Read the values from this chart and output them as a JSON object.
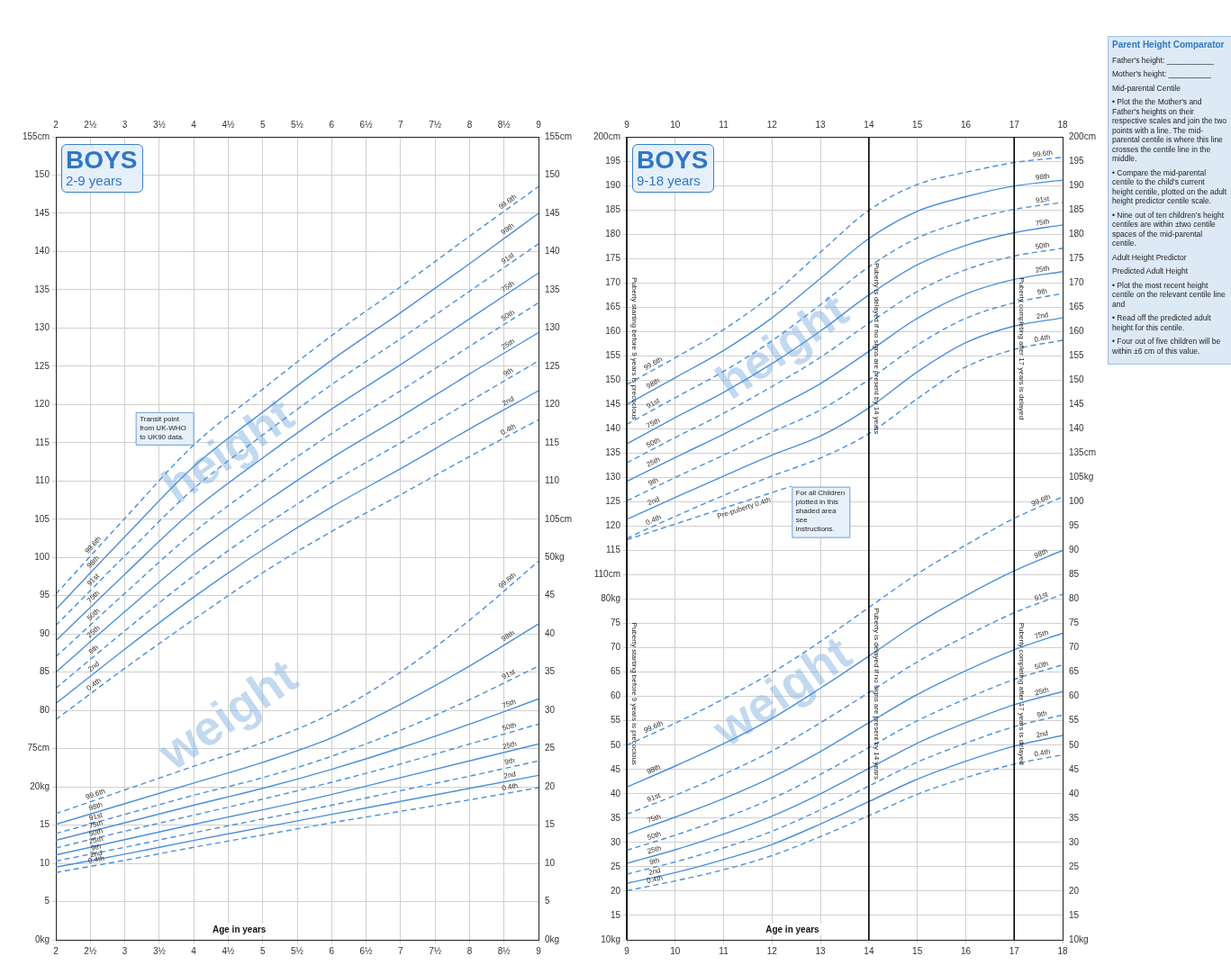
{
  "chart_data": [
    {
      "type": "line",
      "title": "BOYS",
      "subtitle": "2-9 years",
      "xlabel": "Age in years",
      "grid": true,
      "x": [
        2,
        3,
        4,
        5,
        6,
        7,
        8,
        9
      ],
      "xlim": [
        2,
        9
      ],
      "xticks": [
        2,
        {
          "value": 2.5,
          "label": "2½"
        },
        3,
        {
          "value": 3.5,
          "label": "3½"
        },
        4,
        {
          "value": 4.5,
          "label": "4½"
        },
        5,
        {
          "value": 5.5,
          "label": "5½"
        },
        6,
        {
          "value": 6.5,
          "label": "6½"
        },
        7,
        {
          "value": 7.5,
          "label": "7½"
        },
        8,
        {
          "value": 8.5,
          "label": "8½"
        },
        9
      ],
      "x2lim": [
        2,
        9
      ],
      "x2ticks": [
        2,
        {
          "value": 2.5,
          "label": "2½"
        },
        3,
        {
          "value": 3.5,
          "label": "3½"
        },
        4,
        {
          "value": 4.5,
          "label": "4½"
        },
        5,
        {
          "value": 5.5,
          "label": "5½"
        },
        6,
        {
          "value": 6.5,
          "label": "6½"
        },
        7,
        {
          "value": 7.5,
          "label": "7½"
        },
        8,
        {
          "value": 8.5,
          "label": "8½"
        },
        9
      ],
      "ylim": [
        50,
        155
      ],
      "yticks": [
        {
          "value": 75,
          "label": "75cm"
        },
        80,
        85,
        90,
        95,
        100,
        105,
        110,
        115,
        120,
        125,
        130,
        135,
        140,
        145,
        150,
        {
          "value": 155,
          "label": "155cm"
        }
      ],
      "y2lim": [
        50,
        155
      ],
      "y2ticks": [
        {
          "value": 105,
          "label": "105cm"
        },
        110,
        115,
        120,
        125,
        130,
        135,
        140,
        145,
        150,
        {
          "value": 155,
          "label": "155cm"
        }
      ],
      "series": [
        {
          "name": "99.6th",
          "color": "#4a90d9",
          "line_style": "dashed",
          "values": [
            95.2,
            105.1,
            114.7,
            122,
            129,
            135.4,
            142,
            148.5
          ]
        },
        {
          "name": "98th",
          "color": "#4a90d9",
          "line_style": "solid",
          "values": [
            93.2,
            102.7,
            111.9,
            119,
            125.8,
            132,
            138.4,
            145
          ]
        },
        {
          "name": "91st",
          "color": "#4a90d9",
          "line_style": "dashed",
          "values": [
            91.1,
            100.2,
            109,
            116,
            122.6,
            128.6,
            134.8,
            141
          ]
        },
        {
          "name": "75th",
          "color": "#4a90d9",
          "line_style": "solid",
          "values": [
            89.1,
            97.8,
            106.2,
            113,
            119.4,
            125.2,
            131.2,
            137.2
          ]
        },
        {
          "name": "50th",
          "color": "#4a90d9",
          "line_style": "dashed",
          "values": [
            87,
            95.3,
            103.3,
            110,
            116.2,
            121.8,
            127.6,
            133.3
          ]
        },
        {
          "name": "25th",
          "color": "#4a90d9",
          "line_style": "solid",
          "values": [
            85,
            92.9,
            100.5,
            107,
            113,
            118.4,
            124,
            129.4
          ]
        },
        {
          "name": "9th",
          "color": "#4a90d9",
          "line_style": "dashed",
          "values": [
            82.9,
            90.4,
            97.6,
            104,
            109.8,
            115,
            120.4,
            125.7
          ]
        },
        {
          "name": "2nd",
          "color": "#4a90d9",
          "line_style": "solid",
          "values": [
            80.9,
            88,
            94.8,
            101,
            106.6,
            111.6,
            116.8,
            121.8
          ]
        },
        {
          "name": "0.4th",
          "color": "#4a90d9",
          "line_style": "dashed",
          "values": [
            78.8,
            85.5,
            91.9,
            98,
            103.4,
            108.2,
            113.2,
            118
          ]
        }
      ],
      "annotations": [
        "height",
        {
          "text": "Transit point from UK-WHO to UK90 data.",
          "x": 4,
          "y": 114.7
        }
      ]
    },
    {
      "type": "line",
      "grid": "y",
      "tick_labels": "y",
      "x": [
        2,
        3,
        4,
        5,
        6,
        7,
        8,
        9
      ],
      "xlim": [
        2,
        9
      ],
      "ylim": [
        0,
        105
      ],
      "yticks": [
        {
          "value": 0,
          "label": "0kg"
        },
        5,
        10,
        15,
        {
          "value": 20,
          "label": "20kg"
        }
      ],
      "y2lim": [
        0,
        105
      ],
      "y2ticks": [
        {
          "value": 0,
          "label": "0kg"
        },
        5,
        10,
        15,
        20,
        25,
        30,
        35,
        40,
        45,
        {
          "value": 50,
          "label": "50kg"
        }
      ],
      "series": [
        {
          "name": "99.6th",
          "color": "#4a90d9",
          "line_style": "dashed",
          "values": [
            16.5,
            19.6,
            22.7,
            25.8,
            29.6,
            35.0,
            41.8,
            49.5
          ]
        },
        {
          "name": "98th",
          "color": "#4a90d9",
          "line_style": "solid",
          "values": [
            15.1,
            17.8,
            20.5,
            23.2,
            26.4,
            30.8,
            35.8,
            41.3
          ]
        },
        {
          "name": "91st",
          "color": "#4a90d9",
          "line_style": "dashed",
          "values": [
            13.9,
            16.4,
            18.9,
            21.2,
            24.0,
            27.4,
            31.4,
            35.8
          ]
        },
        {
          "name": "75th",
          "color": "#4a90d9",
          "line_style": "solid",
          "values": [
            13.0,
            15.3,
            17.6,
            19.8,
            22.3,
            25.1,
            28.2,
            31.5
          ]
        },
        {
          "name": "50th",
          "color": "#4a90d9",
          "line_style": "dashed",
          "values": [
            12.0,
            14.2,
            16.3,
            18.4,
            20.6,
            23.0,
            25.6,
            28.2
          ]
        },
        {
          "name": "25th",
          "color": "#4a90d9",
          "line_style": "solid",
          "values": [
            11.1,
            13.1,
            15.1,
            17.0,
            19.0,
            21.2,
            23.4,
            25.6
          ]
        },
        {
          "name": "9th",
          "color": "#4a90d9",
          "line_style": "dashed",
          "values": [
            10.3,
            12.1,
            14.0,
            15.8,
            17.6,
            19.5,
            21.4,
            23.4
          ]
        },
        {
          "name": "2nd",
          "color": "#4a90d9",
          "line_style": "solid",
          "values": [
            9.5,
            11.2,
            13.0,
            14.7,
            16.4,
            18.1,
            19.8,
            21.5
          ]
        },
        {
          "name": "0.4th",
          "color": "#4a90d9",
          "line_style": "dashed",
          "values": [
            8.8,
            10.4,
            12.1,
            13.7,
            15.3,
            16.8,
            18.3,
            19.9
          ]
        }
      ],
      "annotations": [
        "weight"
      ]
    },
    {
      "type": "line",
      "title": "BOYS",
      "subtitle": "9-18 years",
      "xlabel": "Age in years",
      "grid": true,
      "x": [
        9,
        10,
        11,
        12,
        13,
        14,
        15,
        16,
        17,
        18
      ],
      "xlim": [
        9,
        18
      ],
      "xticks": [
        9,
        10,
        11,
        12,
        13,
        14,
        15,
        16,
        17,
        18
      ],
      "x2lim": [
        9,
        18
      ],
      "x2ticks": [
        9,
        10,
        11,
        12,
        13,
        14,
        15,
        16,
        17,
        18
      ],
      "ylim": [
        35,
        200
      ],
      "yticks": [
        {
          "value": 110,
          "label": "110cm"
        },
        115,
        120,
        125,
        130,
        135,
        140,
        145,
        150,
        155,
        160,
        165,
        170,
        175,
        180,
        185,
        190,
        195,
        {
          "value": 200,
          "label": "200cm"
        }
      ],
      "y2lim": [
        35,
        200
      ],
      "y2ticks": [
        {
          "value": 135,
          "label": "135cm"
        },
        140,
        145,
        150,
        155,
        160,
        165,
        170,
        175,
        180,
        185,
        190,
        195,
        {
          "value": 200,
          "label": "200cm"
        }
      ],
      "ref_lines": [
        {
          "axis": "x",
          "value": 9,
          "color": "#000000",
          "label": "Puberty starting before 9 years is precocious"
        },
        {
          "axis": "x",
          "value": 14,
          "color": "#000000",
          "label": "Puberty is delayed if no signs are present by 14 years"
        },
        {
          "axis": "x",
          "value": 17,
          "color": "#000000",
          "label": "Puberty completing after 17 years is delayed"
        }
      ],
      "series": [
        {
          "name": "99.6th",
          "color": "#4a90d9",
          "line_style": "dashed",
          "values": [
            149.1,
            154.6,
            160.4,
            167.5,
            176.3,
            184.9,
            190.2,
            192.7,
            194.7,
            195.8
          ]
        },
        {
          "name": "98th",
          "color": "#4a90d9",
          "line_style": "solid",
          "values": [
            145.0,
            150.5,
            156.1,
            162.8,
            170.9,
            179.1,
            184.7,
            187.7,
            189.9,
            191.1
          ]
        },
        {
          "name": "91st",
          "color": "#4a90d9",
          "line_style": "dashed",
          "values": [
            140.9,
            146.4,
            151.8,
            158.1,
            165.5,
            173.3,
            179.2,
            182.7,
            185.1,
            186.5
          ]
        },
        {
          "name": "75th",
          "color": "#4a90d9",
          "line_style": "solid",
          "values": [
            136.9,
            142.3,
            147.5,
            153.4,
            160.1,
            167.5,
            173.7,
            177.7,
            180.3,
            181.9
          ]
        },
        {
          "name": "50th",
          "color": "#4a90d9",
          "line_style": "dashed",
          "values": [
            133.0,
            138.2,
            143.2,
            148.7,
            154.7,
            161.7,
            168.2,
            172.7,
            175.5,
            177.1
          ]
        },
        {
          "name": "25th",
          "color": "#4a90d9",
          "line_style": "solid",
          "values": [
            129.2,
            134.1,
            138.9,
            144.0,
            149.3,
            155.9,
            162.7,
            167.7,
            170.7,
            172.3
          ]
        },
        {
          "name": "9th",
          "color": "#4a90d9",
          "line_style": "dashed",
          "values": [
            125.2,
            130.0,
            134.6,
            139.3,
            143.9,
            150.1,
            157.2,
            162.7,
            165.9,
            167.8
          ]
        },
        {
          "name": "2nd",
          "color": "#4a90d9",
          "line_style": "solid",
          "values": [
            121.4,
            125.9,
            130.3,
            134.6,
            138.5,
            144.3,
            151.7,
            157.7,
            161.1,
            162.8
          ]
        },
        {
          "name": "0.4th",
          "color": "#4a90d9",
          "line_style": "dashed",
          "values": [
            117.5,
            122.0,
            126.3,
            130.3,
            134.0,
            139.0,
            146.2,
            152.7,
            156.3,
            158.2
          ]
        },
        {
          "name": "Pre-puberty 0.4th",
          "color": "#4a90d9",
          "line_style": "dashed",
          "x": [
            9,
            12.4
          ],
          "values": [
            117.2,
            128.2
          ]
        }
      ],
      "annotations": [
        "height",
        {
          "text": "For all Children plotted in this shaded area see instructions.",
          "x": 12.4,
          "y": 128.2
        }
      ]
    },
    {
      "type": "line",
      "grid": "y",
      "tick_labels": "y",
      "x": [
        9,
        10,
        11,
        12,
        13,
        14,
        15,
        16,
        17,
        18
      ],
      "xlim": [
        9,
        18
      ],
      "ylim": [
        10,
        175
      ],
      "yticks": [
        {
          "value": 10,
          "label": "10kg"
        },
        15,
        20,
        25,
        30,
        35,
        40,
        45,
        50,
        55,
        60,
        65,
        70,
        75,
        {
          "value": 80,
          "label": "80kg"
        }
      ],
      "y2lim": [
        10,
        175
      ],
      "y2ticks": [
        {
          "value": 10,
          "label": "10kg"
        },
        15,
        20,
        25,
        30,
        35,
        40,
        45,
        50,
        55,
        60,
        65,
        70,
        75,
        80,
        85,
        90,
        95,
        100,
        {
          "value": 105,
          "label": "105kg"
        }
      ],
      "ref_lines": [
        {
          "axis": "x",
          "value": 9,
          "color": "#000000",
          "label": "Puberty starting before 9 years is precocious"
        },
        {
          "axis": "x",
          "value": 14,
          "color": "#000000",
          "label": "Puberty is delayed if no signs are present by 14 years"
        },
        {
          "axis": "x",
          "value": 17,
          "color": "#000000",
          "label": "Puberty completing after 17 years is delayed"
        }
      ],
      "series": [
        {
          "name": "99.6th",
          "color": "#4a90d9",
          "line_style": "dashed",
          "values": [
            50.0,
            54.5,
            59.5,
            64.9,
            71.3,
            78.3,
            85.2,
            91.1,
            96.6,
            101.0
          ]
        },
        {
          "name": "98th",
          "color": "#4a90d9",
          "line_style": "solid",
          "values": [
            41.4,
            45.7,
            50.3,
            55.5,
            61.7,
            68.3,
            75.0,
            80.7,
            85.8,
            90.0
          ]
        },
        {
          "name": "91st",
          "color": "#4a90d9",
          "line_style": "dashed",
          "values": [
            35.8,
            39.7,
            44.0,
            48.8,
            54.6,
            60.8,
            67.1,
            72.4,
            77.2,
            81.0
          ]
        },
        {
          "name": "75th",
          "color": "#4a90d9",
          "line_style": "solid",
          "values": [
            31.7,
            35.2,
            39.0,
            43.4,
            48.7,
            54.6,
            60.4,
            65.3,
            69.6,
            73.0
          ]
        },
        {
          "name": "50th",
          "color": "#4a90d9",
          "line_style": "dashed",
          "values": [
            28.4,
            31.5,
            35.0,
            39.0,
            44.0,
            49.5,
            55.0,
            59.5,
            63.5,
            66.5
          ]
        },
        {
          "name": "25th",
          "color": "#4a90d9",
          "line_style": "solid",
          "values": [
            25.7,
            28.5,
            31.7,
            35.4,
            40.0,
            45.2,
            50.4,
            54.6,
            58.3,
            61.0
          ]
        },
        {
          "name": "9th",
          "color": "#4a90d9",
          "line_style": "dashed",
          "values": [
            23.5,
            26.0,
            28.9,
            32.3,
            36.7,
            41.6,
            46.5,
            50.4,
            53.8,
            56.2
          ]
        },
        {
          "name": "2nd",
          "color": "#4a90d9",
          "line_style": "solid",
          "values": [
            21.6,
            23.8,
            26.5,
            29.6,
            33.8,
            38.4,
            43.0,
            46.7,
            49.8,
            52.0
          ]
        },
        {
          "name": "0.4th",
          "color": "#4a90d9",
          "line_style": "dashed",
          "values": [
            20.1,
            22.1,
            24.4,
            27.3,
            31.2,
            35.5,
            39.9,
            43.3,
            46.1,
            48.0
          ]
        }
      ],
      "annotations": [
        "weight"
      ]
    },
    {
      "type": "other",
      "title": "Parent Height Comparator",
      "annotations": [
        "Father's height: ___________",
        "Mother's height: __________",
        "Mid-parental Centile",
        "• Plot the the Mother's and Father's heights on their respective scales and join the two points with a line. The mid-parental centile is where this line crosses the centile line in the middle.",
        "• Compare the mid-parental centile to the child's current height centile, plotted on the adult height predictor centile scale.",
        "• Nine out of ten children's height centiles are within ±two centile spaces of the mid-parental centile.",
        "Adult Height Predictor",
        "Predicted Adult Height",
        "• Plot the most recent height centile on the relevant centile line and",
        "• Read off the predicted adult height for this centile.",
        "• Four out of five children will be within ±6 cm of this value."
      ]
    }
  ]
}
